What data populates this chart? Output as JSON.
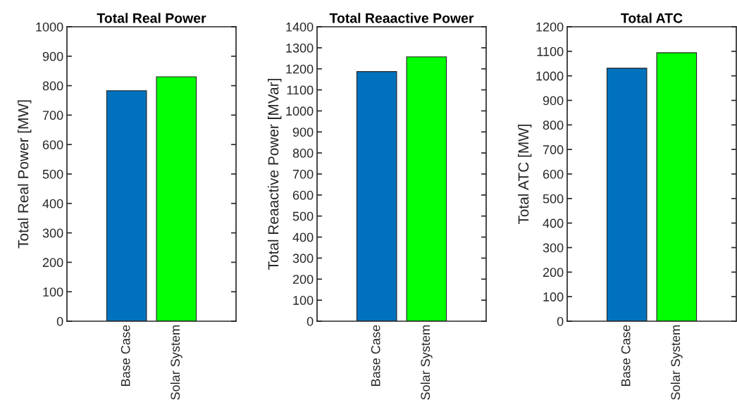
{
  "chart_data": [
    {
      "type": "bar",
      "title": "Total Real Power",
      "ylabel": "Total Real Power [MW]",
      "categories": [
        "Base Case",
        "Solar System"
      ],
      "values": [
        783,
        830
      ],
      "colors": [
        "#0072bd",
        "#00ff00"
      ],
      "ylim": [
        0,
        1000
      ],
      "yticks": [
        0,
        100,
        200,
        300,
        400,
        500,
        600,
        700,
        800,
        900,
        1000
      ],
      "grid": false
    },
    {
      "type": "bar",
      "title": "Total Reaactive Power",
      "ylabel": "Total Reaactive Power [MVar]",
      "categories": [
        "Base Case",
        "Solar System"
      ],
      "values": [
        1187,
        1257
      ],
      "colors": [
        "#0072bd",
        "#00ff00"
      ],
      "ylim": [
        0,
        1400
      ],
      "yticks": [
        0,
        100,
        200,
        300,
        400,
        500,
        600,
        700,
        800,
        900,
        1000,
        1100,
        1200,
        1300,
        1400
      ],
      "grid": false
    },
    {
      "type": "bar",
      "title": "Total ATC",
      "ylabel": "Total ATC [MW]",
      "categories": [
        "Base Case",
        "Solar System"
      ],
      "values": [
        1031,
        1094
      ],
      "colors": [
        "#0072bd",
        "#00ff00"
      ],
      "ylim": [
        0,
        1200
      ],
      "yticks": [
        0,
        100,
        200,
        300,
        400,
        500,
        600,
        700,
        800,
        900,
        1000,
        1100,
        1200
      ],
      "grid": false
    }
  ]
}
